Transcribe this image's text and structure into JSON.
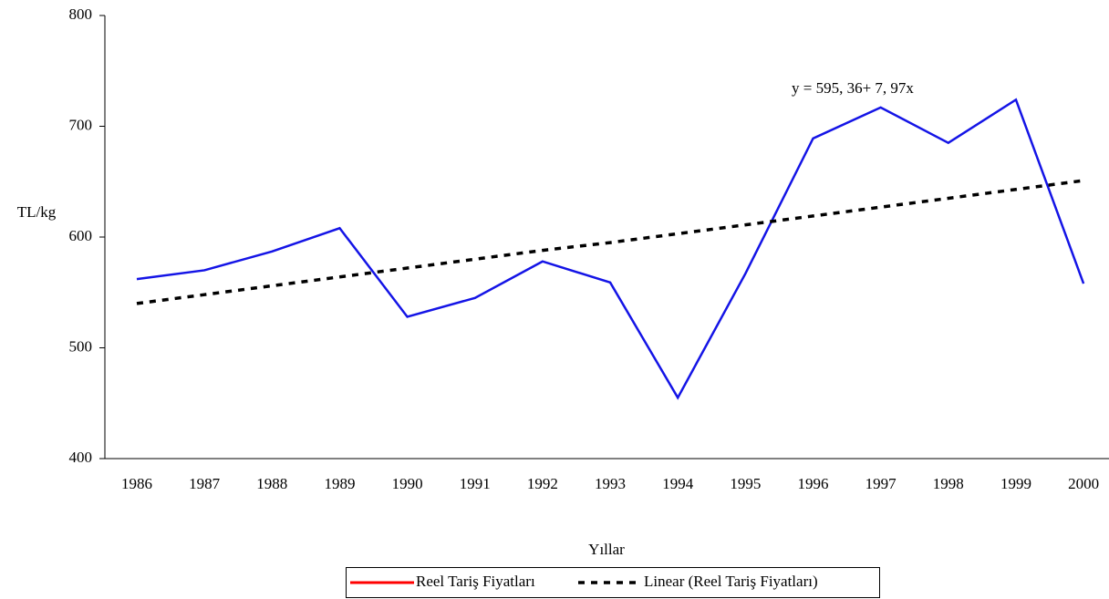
{
  "chart_data": {
    "type": "line",
    "y_label": "TL/kg",
    "x_label": "Yıllar",
    "annotation": "y = 595, 36+ 7, 97x",
    "categories": [
      "1986",
      "1987",
      "1988",
      "1989",
      "1990",
      "1991",
      "1992",
      "1993",
      "1994",
      "1995",
      "1996",
      "1997",
      "1998",
      "1999",
      "2000"
    ],
    "series": [
      {
        "name": "Reel Tariş Fiyatları",
        "color": "#1414e6",
        "legend_color": "#ff0000",
        "dash": false,
        "values": [
          562,
          570,
          587,
          608,
          528,
          545,
          578,
          559,
          455,
          567,
          689,
          717,
          685,
          724,
          558
        ]
      },
      {
        "name": "Linear (Reel Tariş Fiyatları)",
        "color": "#000000",
        "dash": true,
        "values": [
          540,
          548,
          556,
          564,
          572,
          580,
          588,
          595,
          603,
          611,
          619,
          627,
          635,
          643,
          651
        ]
      }
    ],
    "ylim": [
      400,
      800
    ],
    "yticks": [
      400,
      500,
      600,
      700,
      800
    ],
    "grid": false
  }
}
